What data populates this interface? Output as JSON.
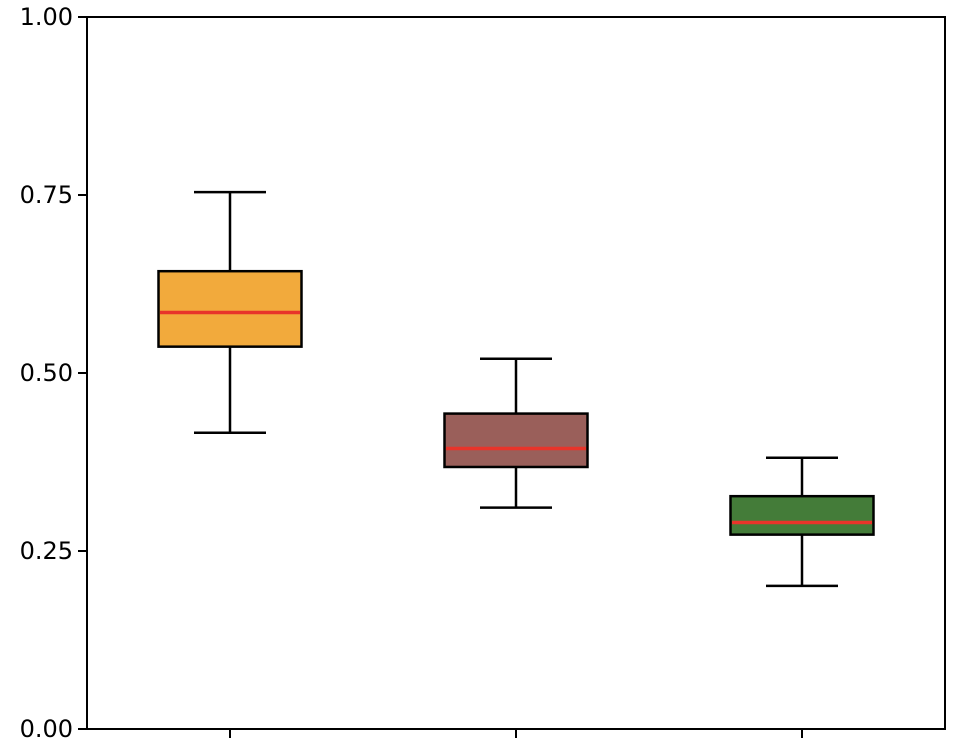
{
  "chart_data": {
    "type": "box",
    "title": "",
    "xlabel": "",
    "ylabel": "",
    "ylim": [
      0,
      1
    ],
    "yticks": [
      "0.00",
      "0.25",
      "0.50",
      "0.75",
      "1.00"
    ],
    "categories": [
      "",
      "",
      ""
    ],
    "grid": false,
    "legend": "none",
    "boxes": [
      {
        "whisker_low": 0.416,
        "q1": 0.537,
        "median": 0.585,
        "q3": 0.643,
        "whisker_high": 0.754,
        "color": "#F2AA3C"
      },
      {
        "whisker_low": 0.311,
        "q1": 0.368,
        "median": 0.394,
        "q3": 0.443,
        "whisker_high": 0.52,
        "color": "#9A5F5A"
      },
      {
        "whisker_low": 0.201,
        "q1": 0.273,
        "median": 0.29,
        "q3": 0.327,
        "whisker_high": 0.381,
        "color": "#447C39"
      }
    ],
    "median_color": "#E8342A",
    "edge_color": "#000000"
  }
}
